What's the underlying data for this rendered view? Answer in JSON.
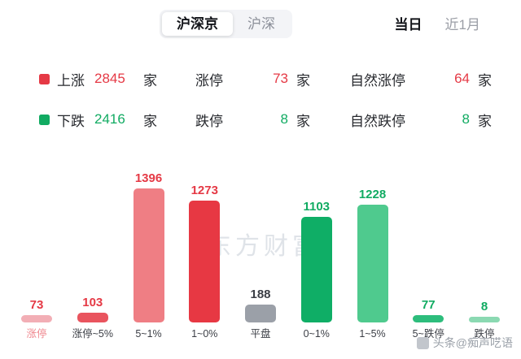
{
  "colors": {
    "red": "#e53945",
    "green": "#11ab62"
  },
  "tabs": {
    "market": [
      {
        "label": "沪深京",
        "selected": true
      },
      {
        "label": "沪深",
        "selected": false
      }
    ],
    "period": [
      {
        "label": "当日",
        "selected": true
      },
      {
        "label": "近1月",
        "selected": false
      }
    ]
  },
  "summary": {
    "up": {
      "label": "上涨",
      "count": "2845",
      "unit": "家",
      "limit_label": "涨停",
      "limit_count": "73",
      "limit_unit": "家",
      "natural_label": "自然涨停",
      "natural_count": "64",
      "natural_unit": "家"
    },
    "down": {
      "label": "下跌",
      "count": "2416",
      "unit": "家",
      "limit_label": "跌停",
      "limit_count": "8",
      "limit_unit": "家",
      "natural_label": "自然跌停",
      "natural_count": "8",
      "natural_unit": "家"
    }
  },
  "chart_data": {
    "type": "bar",
    "title": "",
    "xlabel": "",
    "ylabel": "",
    "ylim": [
      0,
      1396
    ],
    "categories": [
      "涨停",
      "涨停~5%",
      "5~1%",
      "1~0%",
      "平盘",
      "0~1%",
      "1~5%",
      "5~跌停",
      "跌停"
    ],
    "values": [
      73,
      103,
      1396,
      1273,
      188,
      1103,
      1228,
      77,
      8
    ],
    "bar_colors": [
      "#f2aeb5",
      "#e9545e",
      "#ef7e84",
      "#e73843",
      "#9ba0a8",
      "#0fae66",
      "#4fca8e",
      "#2dbd7c",
      "#8bd9b2"
    ],
    "value_colors": [
      "#e53945",
      "#e53945",
      "#e53945",
      "#e53945",
      "#3b3e45",
      "#11ab62",
      "#11ab62",
      "#11ab62",
      "#11ab62"
    ],
    "category_colors": [
      "#ef868d",
      "#3b3e45",
      "#3b3e45",
      "#3b3e45",
      "#3b3e45",
      "#3b3e45",
      "#3b3e45",
      "#3b3e45",
      "#3b3e45"
    ],
    "legend_position": "none",
    "grid": false
  },
  "watermarks": {
    "center": "东方财富",
    "corner": "头条@痴声呓语"
  }
}
